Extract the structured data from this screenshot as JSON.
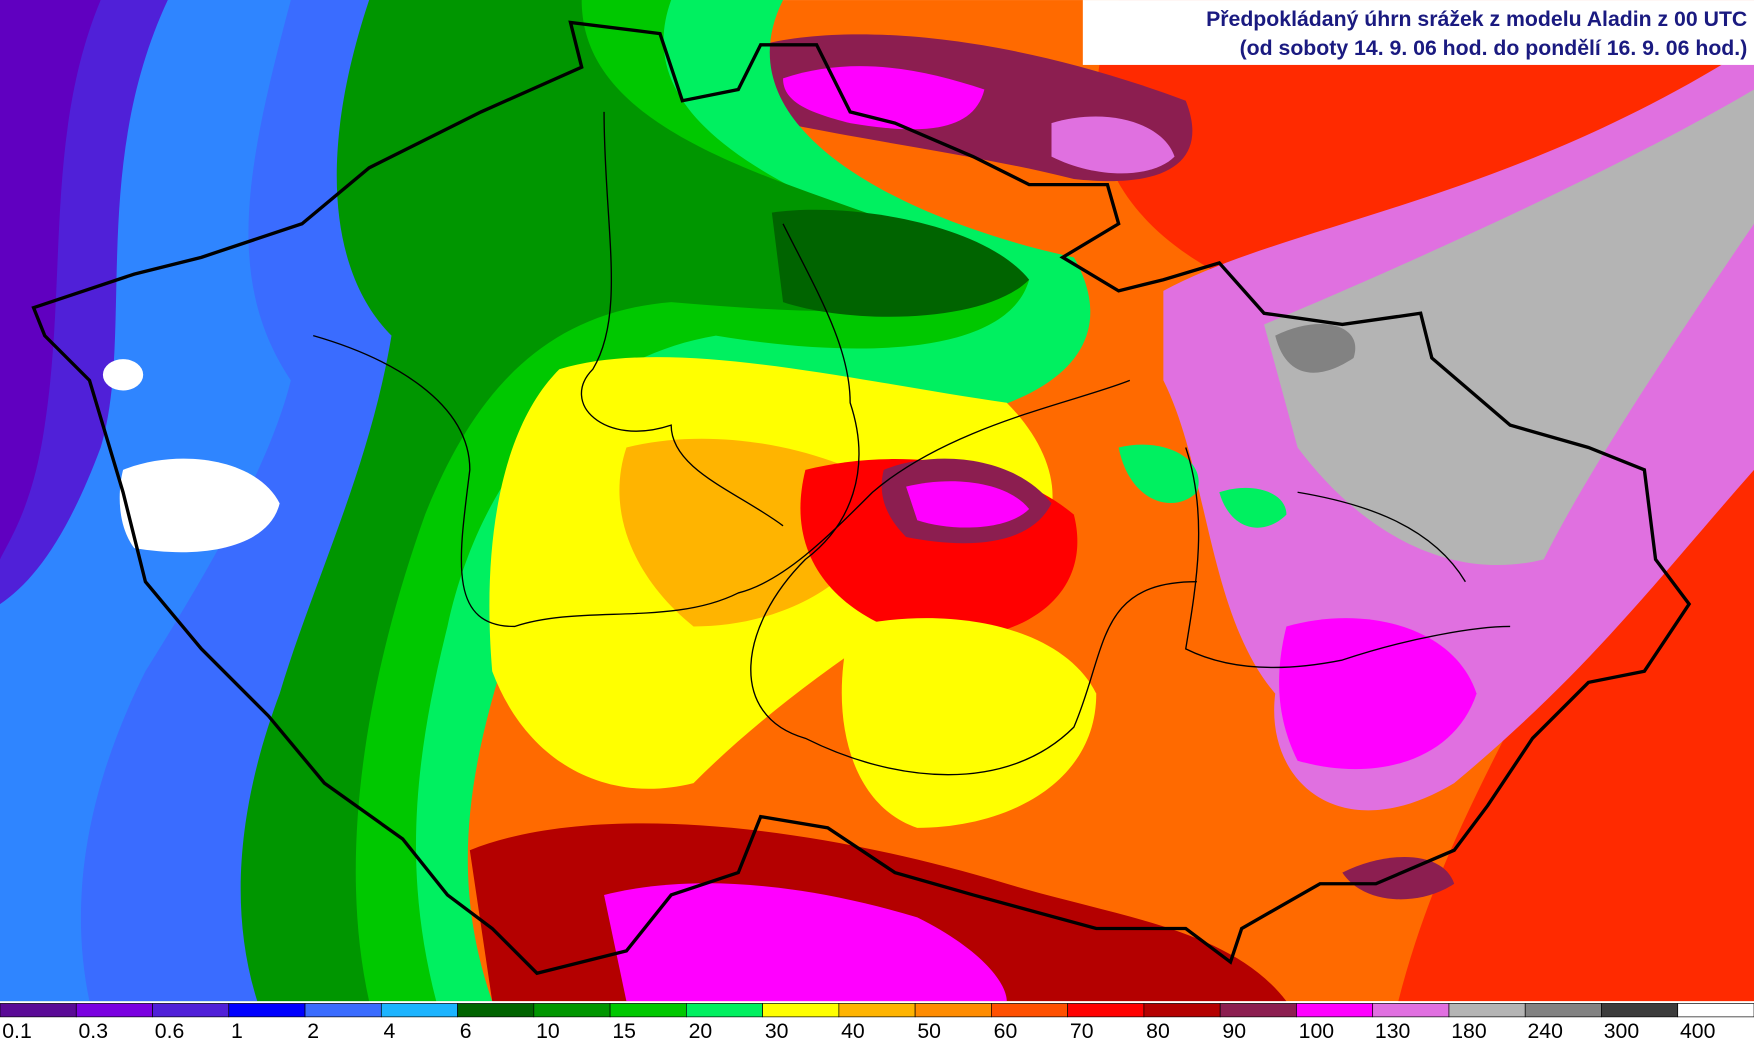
{
  "title": {
    "line1": "Předpokládaný úhrn srážek z modelu Aladin z 00 UTC",
    "line2": "(od soboty 14. 9. 06 hod. do pondělí 16. 9. 06 hod.)"
  },
  "legend": {
    "items": [
      {
        "value": 0.1,
        "color": "#5a0a96"
      },
      {
        "value": 0.3,
        "color": "#7a00e0"
      },
      {
        "value": 0.6,
        "color": "#5020d8"
      },
      {
        "value": 1,
        "color": "#0000ff"
      },
      {
        "value": 2,
        "color": "#3a6cff"
      },
      {
        "value": 4,
        "color": "#1cb4ff"
      },
      {
        "value": 6,
        "color": "#006400"
      },
      {
        "value": 10,
        "color": "#009600"
      },
      {
        "value": 15,
        "color": "#00c800"
      },
      {
        "value": 20,
        "color": "#00f060"
      },
      {
        "value": 30,
        "color": "#ffff00"
      },
      {
        "value": 40,
        "color": "#ffb400"
      },
      {
        "value": 50,
        "color": "#ff8c00"
      },
      {
        "value": 60,
        "color": "#ff5000"
      },
      {
        "value": 70,
        "color": "#ff0000"
      },
      {
        "value": 80,
        "color": "#b40000"
      },
      {
        "value": 90,
        "color": "#8c1e50"
      },
      {
        "value": 100,
        "color": "#ff00ff"
      },
      {
        "value": 130,
        "color": "#e070e0"
      },
      {
        "value": 180,
        "color": "#b4b4b4"
      },
      {
        "value": 240,
        "color": "#828282"
      },
      {
        "value": 300,
        "color": "#3c3c3c"
      },
      {
        "value": 400,
        "color": "#ffffff"
      }
    ]
  }
}
